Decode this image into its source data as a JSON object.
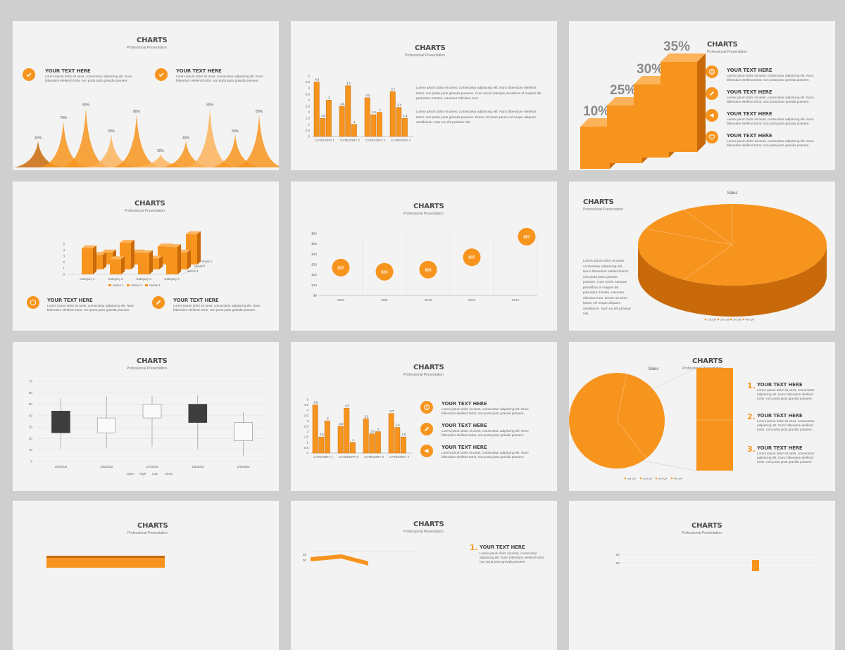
{
  "common": {
    "title": "CHARTS",
    "subtitle": "Professional Presentation",
    "item_heading": "YOUR TEXT HERE",
    "item_text": "Lorem ipsum dolor sit amet, consectetur adipiscing elit. Nunc bibendum eleifend tortor, non porta justo gravida posuere.",
    "paragraph_1": "Lorem ipsum dolor sit amet, consectetur adipiscing elit. Nunc bibendum eleifend tortor, non porta justo gravida posuere. Cum sociis natoque penatibus et magnis dis parturient montes, nascetur ridiculus mus.",
    "paragraph_2": "Lorem ipsum dolor sit amet, consectetur adipiscing elit. Nunc bibendum eleifend tortor, non porta justo gravida posuere. Donec sit amet ipsum vel neque aliquam vestibulum. Nam eu elit pulvinar nisi.",
    "pie_paragraph": "Lorem ipsum dolor sit amet, consectetur adipiscing elit. Nunc bibendum eleifend tortor, non porta justo gravida posuere. Cum sociis natoque penatibus et magnis dis parturient montes, nascetur ridiculus mus. Donec sit amet ipsum vel neque aliquam vestibulum. Nam eu elit pulvinar nisi."
  },
  "colors": {
    "accent": "#f7941d",
    "accent_dark": "#c96a0a",
    "accent_light": "#fbb35c",
    "slide_bg": "#f3f3f3",
    "page_bg": "#cfcfcf",
    "text": "#4a4a4a"
  },
  "icons": {
    "slide1": [
      "checkmark-icon",
      "checkmark-icon"
    ],
    "slide3": [
      "brain-icon",
      "pencil-icon",
      "megaphone-icon",
      "heart-icon"
    ],
    "slide4": [
      "cube-icon",
      "pencil-icon"
    ],
    "slide8": [
      "brain-icon",
      "pencil-icon",
      "megaphone-icon"
    ]
  },
  "numbers": {
    "n1": "1.",
    "n2": "2.",
    "n3": "3."
  },
  "chart_data": [
    {
      "type": "area",
      "labels": [
        "40%",
        "70%",
        "90%",
        "50%",
        "80%",
        "20%",
        "40%",
        "90%",
        "50%",
        "80%"
      ],
      "values": [
        40,
        70,
        90,
        50,
        80,
        20,
        40,
        90,
        50,
        80
      ]
    },
    {
      "type": "bar",
      "categories": [
        "CATEGORY 1",
        "CATEGORY 2",
        "CATEGORY 3",
        "CATEGORY 4"
      ],
      "series": [
        {
          "values": [
            4.5,
            2.5,
            3.2,
            3.7
          ]
        },
        {
          "values": [
            1.5,
            4.2,
            1.8,
            2.4
          ]
        },
        {
          "values": [
            3,
            1,
            2,
            1.5
          ]
        }
      ],
      "y_ticks": [
        "0",
        "0.5",
        "1",
        "1.5",
        "2",
        "2.5",
        "3",
        "3.5",
        "4",
        "4.5",
        "5"
      ],
      "ylim": [
        0,
        5
      ]
    },
    {
      "type": "bar",
      "labels": [
        "10%",
        "25%",
        "30%",
        "35%"
      ],
      "values": [
        10,
        25,
        30,
        35
      ]
    },
    {
      "type": "bar",
      "categories": [
        "Category 1",
        "Category 2",
        "Category 3",
        "Category 4"
      ],
      "series": [
        {
          "name": "Series 1",
          "values": [
            4.3,
            2.5,
            3.5,
            4.5
          ]
        },
        {
          "name": "Series 2",
          "values": [
            2.4,
            4.4,
            1.8,
            2.8
          ]
        },
        {
          "name": "Series 3",
          "values": [
            2,
            2,
            3,
            5
          ]
        }
      ],
      "y_ticks": [
        "0",
        "1",
        "2",
        "3",
        "4",
        "5"
      ],
      "depth_labels": [
        "Series 1",
        "Series 2",
        "Series 3"
      ],
      "ylim": [
        0,
        5
      ]
    },
    {
      "type": "scatter",
      "x": [
        "2010",
        "2011",
        "2012",
        "2013",
        "2014"
      ],
      "y": [
        27,
        23,
        25,
        37,
        57
      ],
      "labels": [
        "$27",
        "$23",
        "$25",
        "$37",
        "$57"
      ],
      "y_ticks": [
        "$0",
        "$10",
        "$20",
        "$30",
        "$40",
        "$50",
        "$60"
      ],
      "ylim": [
        0,
        60
      ]
    },
    {
      "type": "pie",
      "title": "Sales",
      "categories": [
        "1st Qtr",
        "2nd Qtr",
        "3rd Qtr",
        "4th Qtr"
      ],
      "values": [
        8.2,
        3.2,
        1.4,
        1.2
      ]
    },
    {
      "type": "bar",
      "subtype": "candlestick",
      "x": [
        "1/5/2002",
        "1/6/2002",
        "1/7/2002",
        "1/8/2002",
        "1/9/2002"
      ],
      "open": [
        44,
        25,
        38,
        50,
        18
      ],
      "close": [
        25,
        38,
        50,
        34,
        34
      ],
      "high": [
        55,
        57,
        57,
        58,
        43
      ],
      "low": [
        11,
        12,
        13,
        11,
        5
      ],
      "y_ticks": [
        "0",
        "10",
        "20",
        "30",
        "40",
        "50",
        "60",
        "70"
      ],
      "legend": [
        "Open",
        "High",
        "Low",
        "Close"
      ],
      "ylim": [
        0,
        70
      ]
    },
    {
      "type": "bar",
      "categories": [
        "CATEGORY 1",
        "CATEGORY 2",
        "CATEGORY 3",
        "CATEGORY 4"
      ],
      "series": [
        {
          "values": [
            4.5,
            2.5,
            3.2,
            3.7
          ]
        },
        {
          "values": [
            1.5,
            4.2,
            1.8,
            2.4
          ]
        },
        {
          "values": [
            3,
            1,
            2,
            1.5
          ]
        }
      ],
      "y_ticks": [
        "0",
        "0.5",
        "1",
        "1.5",
        "2",
        "2.5",
        "3",
        "3.5",
        "4",
        "4.5",
        "5"
      ],
      "ylim": [
        0,
        5
      ]
    },
    {
      "type": "pie",
      "title": "Sales",
      "categories": [
        "1st Qtr",
        "2nd Qtr",
        "3rd Qtr",
        "4th Qtr"
      ],
      "values": [
        8.2,
        3.2,
        1.4,
        1.2
      ]
    },
    {
      "type": "line",
      "y_ticks": [
        "30",
        "35"
      ]
    },
    {
      "type": "bar",
      "y_ticks": [
        "60",
        "80"
      ]
    }
  ]
}
